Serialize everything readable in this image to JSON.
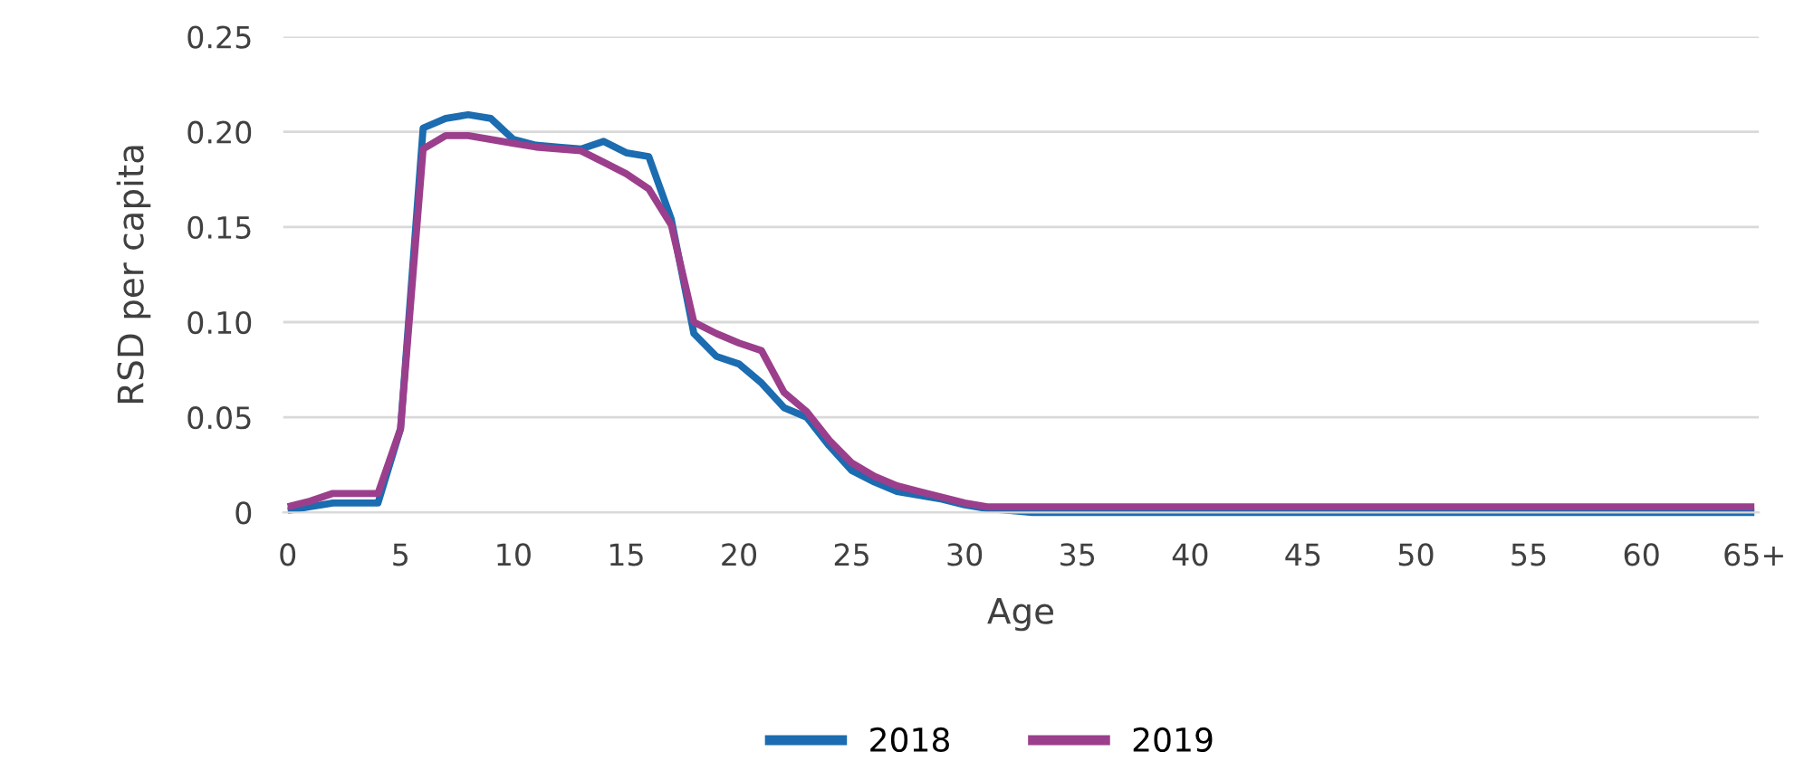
{
  "chart_data": {
    "type": "line",
    "xlabel": "Age",
    "ylabel": "RSD per capita",
    "categories": [
      "0",
      null,
      null,
      null,
      null,
      "5",
      null,
      null,
      null,
      null,
      "10",
      null,
      null,
      null,
      null,
      "15",
      null,
      null,
      null,
      null,
      "20",
      null,
      null,
      null,
      null,
      "25",
      null,
      null,
      null,
      null,
      "30",
      null,
      null,
      null,
      null,
      "35",
      null,
      null,
      null,
      null,
      "40",
      null,
      null,
      null,
      null,
      "45",
      null,
      null,
      null,
      null,
      "50",
      null,
      null,
      null,
      null,
      "55",
      null,
      null,
      null,
      null,
      "60",
      null,
      null,
      null,
      null,
      "65+"
    ],
    "series": [
      {
        "name": "2018",
        "color": "#1b6cb0",
        "values": [
          0.001,
          0.003,
          0.005,
          0.005,
          0.005,
          0.044,
          0.202,
          0.207,
          0.209,
          0.207,
          0.196,
          0.193,
          0.192,
          0.191,
          0.195,
          0.189,
          0.187,
          0.154,
          0.094,
          0.082,
          0.078,
          0.068,
          0.055,
          0.05,
          0.035,
          0.022,
          0.016,
          0.011,
          0.009,
          0.007,
          0.004,
          0.002,
          0.001,
          0.0,
          0.0,
          0.0,
          0.0,
          0.0,
          0.0,
          0.0,
          0.0,
          0.0,
          0.0,
          0.0,
          0.0,
          0.0,
          0.0,
          0.0,
          0.0,
          0.0,
          0.0,
          0.0,
          0.0,
          0.0,
          0.0,
          0.0,
          0.0,
          0.0,
          0.0,
          0.0,
          0.0,
          0.0,
          0.0,
          0.0,
          0.0,
          0.0
        ]
      },
      {
        "name": "2019",
        "color": "#9b3f8c",
        "values": [
          0.003,
          0.006,
          0.01,
          0.01,
          0.01,
          0.044,
          0.191,
          0.198,
          0.198,
          0.196,
          0.194,
          0.192,
          0.191,
          0.19,
          0.184,
          0.178,
          0.17,
          0.151,
          0.1,
          0.094,
          0.089,
          0.085,
          0.063,
          0.053,
          0.038,
          0.026,
          0.019,
          0.014,
          0.011,
          0.008,
          0.005,
          0.003,
          0.003,
          0.003,
          0.003,
          0.003,
          0.003,
          0.003,
          0.003,
          0.003,
          0.003,
          0.003,
          0.003,
          0.003,
          0.003,
          0.003,
          0.003,
          0.003,
          0.003,
          0.003,
          0.003,
          0.003,
          0.003,
          0.003,
          0.003,
          0.003,
          0.003,
          0.003,
          0.003,
          0.003,
          0.003,
          0.003,
          0.003,
          0.003,
          0.003,
          0.003
        ]
      }
    ],
    "ylim": [
      0,
      0.25
    ],
    "yticks": [
      0,
      0.05,
      {
        "value": 0.1,
        "label": "0.10"
      },
      0.15,
      {
        "value": 0.2,
        "label": "0.20"
      },
      0.25
    ],
    "grid": "y",
    "legend": "bottom",
    "marker": "none",
    "line_style": "solid"
  }
}
